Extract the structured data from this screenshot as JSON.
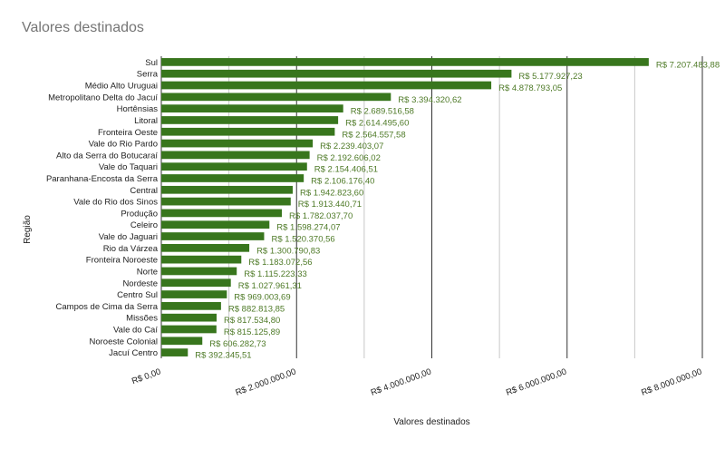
{
  "chart_data": {
    "type": "bar",
    "orientation": "horizontal",
    "title": "Valores destinados",
    "xlabel": "Valores destinados",
    "ylabel": "Região",
    "xlim": [
      0,
      8000000
    ],
    "x_ticks": [
      0,
      2000000,
      4000000,
      6000000,
      8000000
    ],
    "x_tick_labels": [
      "R$ 0,00",
      "R$ 2.000.000,00",
      "R$ 4.000.000,00",
      "R$ 6.000.000,00",
      "R$ 8.000.000,00"
    ],
    "grid": true,
    "bar_color": "#38761d",
    "value_label_color": "#4e7a27",
    "categories": [
      "Sul",
      "Serra",
      "Médio Alto Uruguai",
      "Metropolitano Delta do Jacuí",
      "Hortênsias",
      "Litoral",
      "Fronteira Oeste",
      "Vale do Rio Pardo",
      "Alto da Serra do Botucaraí",
      "Vale do Taquari",
      "Paranhana-Encosta da Serra",
      "Central",
      "Vale do Rio dos Sinos",
      "Produção",
      "Celeiro",
      "Vale do Jaguari",
      "Rio da Várzea",
      "Fronteira Noroeste",
      "Norte",
      "Nordeste",
      "Centro Sul",
      "Campos de Cima da Serra",
      "Missões",
      "Vale do Caí",
      "Noroeste Colonial",
      "Jacuí Centro"
    ],
    "values": [
      7207483.88,
      5177927.23,
      4878793.05,
      3394320.62,
      2689516.58,
      2614495.6,
      2564557.58,
      2239403.07,
      2192606.02,
      2154406.51,
      2106176.4,
      1942823.6,
      1913440.71,
      1782037.7,
      1598274.07,
      1520370.56,
      1300790.83,
      1183072.56,
      1115223.33,
      1027961.31,
      969003.69,
      882813.85,
      817534.8,
      815125.89,
      606282.73,
      392345.51
    ],
    "value_labels": [
      "R$ 7.207.483,88",
      "R$ 5.177.927,23",
      "R$ 4.878.793,05",
      "R$ 3.394.320,62",
      "R$ 2.689.516,58",
      "R$ 2.614.495,60",
      "R$ 2.564.557,58",
      "R$ 2.239.403,07",
      "R$ 2.192.606,02",
      "R$ 2.154.406,51",
      "R$ 2.106.176,40",
      "R$ 1.942.823,60",
      "R$ 1.913.440,71",
      "R$ 1.782.037,70",
      "R$ 1.598.274,07",
      "R$ 1.520.370,56",
      "R$ 1.300.790,83",
      "R$ 1.183.072,56",
      "R$ 1.115.223,33",
      "R$ 1.027.961,31",
      "R$ 969.003,69",
      "R$ 882.813,85",
      "R$ 817.534,80",
      "R$ 815.125,89",
      "R$ 606.282,73",
      "R$ 392.345,51"
    ]
  }
}
